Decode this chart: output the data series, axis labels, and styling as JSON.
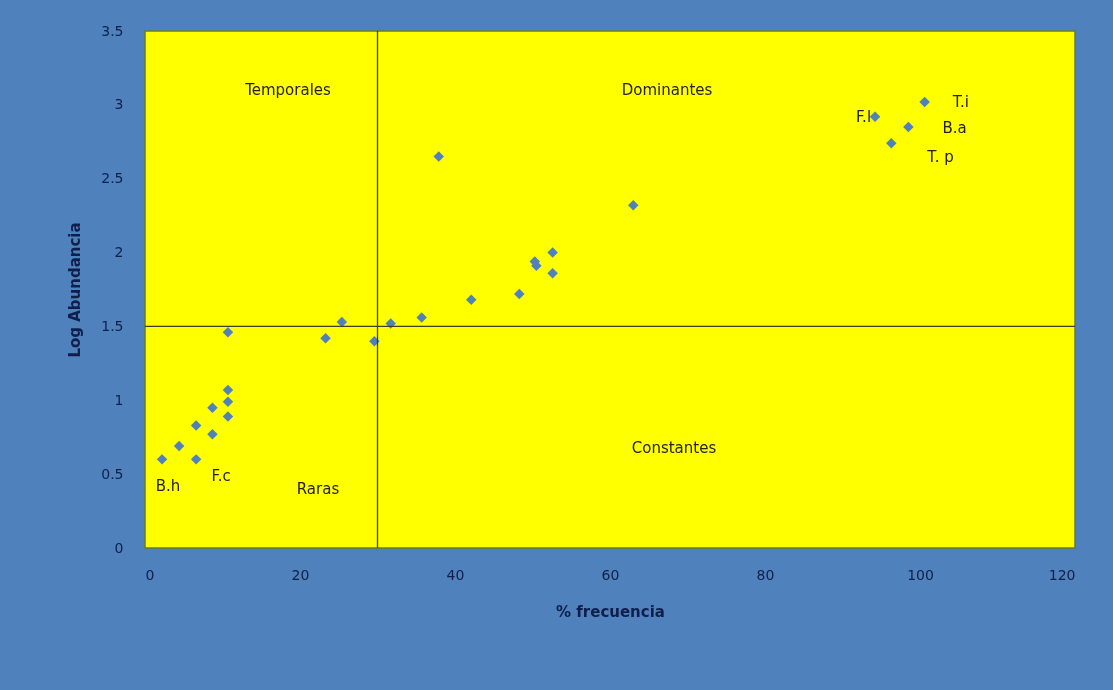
{
  "chart_data": {
    "type": "scatter",
    "xlabel": "% frecuencia",
    "ylabel": "Log Abundancia",
    "x": [
      2.2,
      4.4,
      6.6,
      6.6,
      8.7,
      8.7,
      10.7,
      10.7,
      10.7,
      10.7,
      23.3,
      25.4,
      29.6,
      31.7,
      35.7,
      42.1,
      48.3,
      50.5,
      50.3,
      52.6,
      52.6,
      63.0,
      37.9,
      94.2,
      98.5,
      96.3,
      100.6
    ],
    "series": [
      {
        "color": "#4f81bd",
        "values": [
          0.6,
          0.69,
          0.83,
          0.6,
          0.77,
          0.95,
          0.89,
          0.99,
          1.07,
          1.46,
          1.42,
          1.53,
          1.4,
          1.52,
          1.56,
          1.68,
          1.72,
          1.91,
          1.94,
          1.86,
          2.0,
          2.32,
          2.65,
          2.92,
          2.85,
          2.74,
          3.02
        ]
      }
    ],
    "xlim": [
      0,
      120
    ],
    "xticks": [
      0,
      20,
      40,
      60,
      80,
      100,
      120
    ],
    "ylim": [
      0,
      3.5
    ],
    "yticks": [
      0,
      0.5,
      1,
      1.5,
      2,
      2.5,
      3,
      3.5
    ],
    "ref_lines": [
      {
        "axis": "x",
        "value": 30,
        "color": "#404020"
      },
      {
        "axis": "y",
        "value": 1.5,
        "color": "#404020"
      }
    ],
    "annotations": [
      "Temporales",
      "Dominantes",
      "Raras",
      "Constantes",
      {
        "text": "B.h",
        "x": 2.2,
        "y": 0.6
      },
      {
        "text": "F.c",
        "x": 6.6,
        "y": 0.6
      },
      {
        "text": "F.l",
        "x": 94.2,
        "y": 2.92
      },
      {
        "text": "T.i",
        "x": 100.6,
        "y": 3.02
      },
      {
        "text": "B.a",
        "x": 98.5,
        "y": 2.85
      },
      {
        "text": "T. p",
        "x": 96.3,
        "y": 2.74
      }
    ],
    "marker": "diamond",
    "grid": false
  }
}
